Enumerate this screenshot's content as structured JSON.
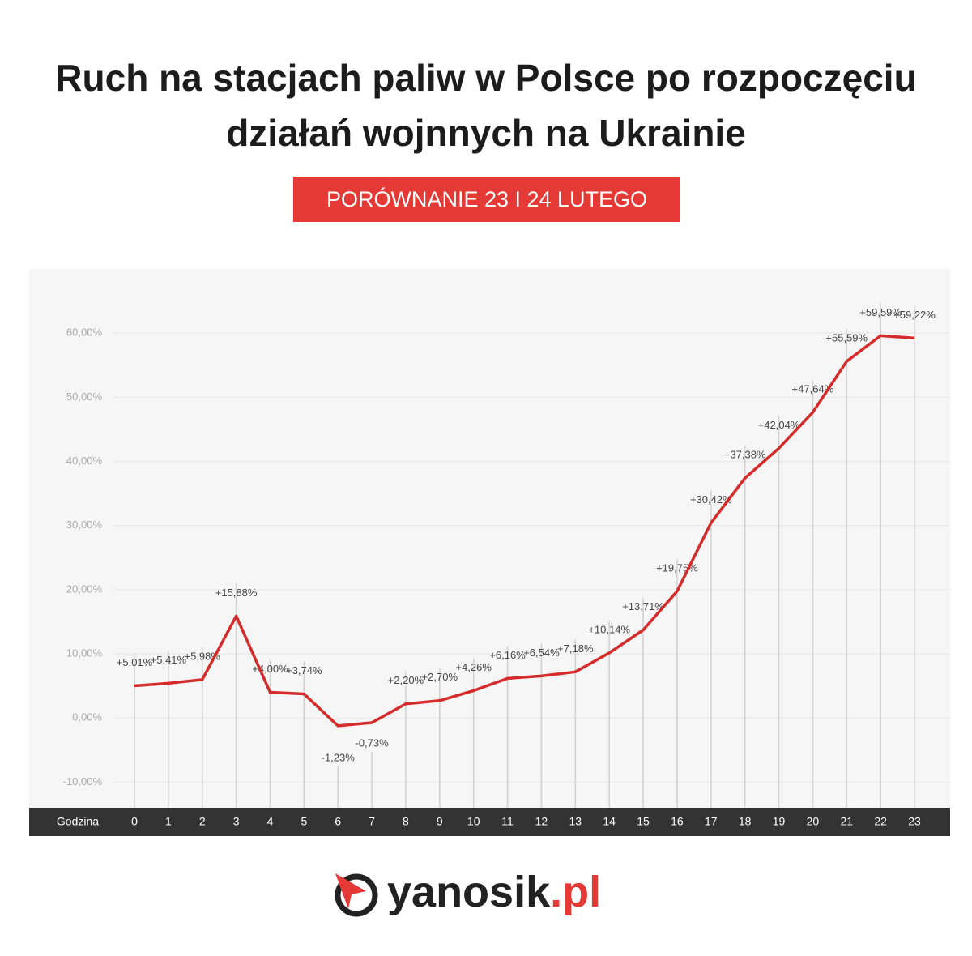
{
  "chart_data": {
    "type": "line",
    "title": "Ruch na stacjach paliw w Polsce po rozpoczęciu działań wojnnych na Ukrainie",
    "subtitle": "PORÓWNANIE 23 I 24 LUTEGO",
    "x_label": "Godzina",
    "categories": [
      "0",
      "1",
      "2",
      "3",
      "4",
      "5",
      "6",
      "7",
      "8",
      "9",
      "10",
      "11",
      "12",
      "13",
      "14",
      "15",
      "16",
      "17",
      "18",
      "19",
      "20",
      "21",
      "22",
      "23"
    ],
    "values": [
      5.01,
      5.41,
      5.98,
      15.88,
      4.0,
      3.74,
      -1.23,
      -0.73,
      2.2,
      2.7,
      4.26,
      6.16,
      6.54,
      7.18,
      10.14,
      13.71,
      19.75,
      30.42,
      37.38,
      42.04,
      47.64,
      55.59,
      59.59,
      59.22
    ],
    "value_labels": [
      "+5,01%",
      "+5,41%",
      "+5,98%",
      "+15,88%",
      "+4,00%",
      "+3,74%",
      "-1,23%",
      "-0,73%",
      "+2,20%",
      "+2,70%",
      "+4,26%",
      "+6,16%",
      "+6,54%",
      "+7,18%",
      "+10,14%",
      "+13,71%",
      "+19,75%",
      "+30,42%",
      "+37,38%",
      "+42,04%",
      "+47,64%",
      "+55,59%",
      "+59,59%",
      "+59,22%"
    ],
    "color": "#d52b2b",
    "ylim": [
      -14,
      70
    ],
    "yticks": [
      {
        "value": -10,
        "label": "-10,00%"
      },
      {
        "value": 0,
        "label": "0,00%"
      },
      {
        "value": 10,
        "label": "10,00%"
      },
      {
        "value": 20,
        "label": "20,00%"
      },
      {
        "value": 30,
        "label": "30,00%"
      },
      {
        "value": 40,
        "label": "40,00%"
      },
      {
        "value": 50,
        "label": "50,00%"
      },
      {
        "value": 60,
        "label": "60,00%"
      }
    ],
    "grid": true
  },
  "logo": {
    "text": "yanosik",
    "suffix": ".pl"
  }
}
